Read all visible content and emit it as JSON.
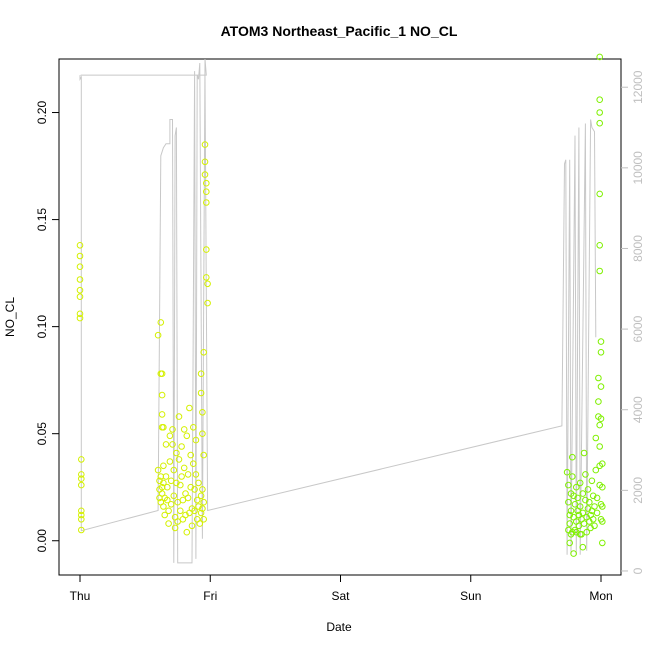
{
  "chart_data": {
    "type": "scatter",
    "title": "ATOM3 Northeast_Pacific_1 NO_CL",
    "xlabel": "Date",
    "ylabel": "NO_CL",
    "x_ticks": [
      "Thu",
      "Fri",
      "Sat",
      "Sun",
      "Mon"
    ],
    "ylim": [
      -0.016,
      0.225
    ],
    "yticks": [
      0.0,
      0.05,
      0.1,
      0.15,
      0.2
    ],
    "ytick_labels": [
      "0.00",
      "0.05",
      "0.10",
      "0.15",
      "0.20"
    ],
    "y2lim": [
      -100,
      12700
    ],
    "y2ticks": [
      0,
      2000,
      4000,
      6000,
      8000,
      10000,
      12000
    ],
    "y2tick_labels": [
      "0",
      "2000",
      "4000",
      "6000",
      "8000",
      "10000",
      "12000"
    ],
    "grid": false,
    "colors": {
      "points_early": "#d4f000",
      "points_late": "#7ff000",
      "altitude_line": "#c8c8c8",
      "right_axis": "#bfbfbf"
    },
    "scatter": [
      [
        0.0,
        0.138
      ],
      [
        0.0,
        0.133
      ],
      [
        0.0,
        0.128
      ],
      [
        0.0,
        0.122
      ],
      [
        0.0,
        0.117
      ],
      [
        0.0,
        0.114
      ],
      [
        0.0,
        0.106
      ],
      [
        0.0,
        0.104
      ],
      [
        0.01,
        0.038
      ],
      [
        0.01,
        0.031
      ],
      [
        0.01,
        0.029
      ],
      [
        0.01,
        0.026
      ],
      [
        0.01,
        0.014
      ],
      [
        0.01,
        0.012
      ],
      [
        0.01,
        0.01
      ],
      [
        0.01,
        0.005
      ],
      [
        0.6,
        0.096
      ],
      [
        0.62,
        0.102
      ],
      [
        0.62,
        0.078
      ],
      [
        0.63,
        0.078
      ],
      [
        0.63,
        0.068
      ],
      [
        0.63,
        0.059
      ],
      [
        0.63,
        0.053
      ],
      [
        0.64,
        0.053
      ],
      [
        0.6,
        0.033
      ],
      [
        0.61,
        0.028
      ],
      [
        0.61,
        0.024
      ],
      [
        0.61,
        0.02
      ],
      [
        0.62,
        0.018
      ],
      [
        0.62,
        0.03
      ],
      [
        0.63,
        0.025
      ],
      [
        0.63,
        0.022
      ],
      [
        0.64,
        0.035
      ],
      [
        0.64,
        0.027
      ],
      [
        0.64,
        0.016
      ],
      [
        0.65,
        0.02
      ],
      [
        0.65,
        0.012
      ],
      [
        0.66,
        0.045
      ],
      [
        0.66,
        0.03
      ],
      [
        0.67,
        0.025
      ],
      [
        0.67,
        0.019
      ],
      [
        0.68,
        0.014
      ],
      [
        0.68,
        0.008
      ],
      [
        0.69,
        0.049
      ],
      [
        0.69,
        0.037
      ],
      [
        0.7,
        0.028
      ],
      [
        0.7,
        0.017
      ],
      [
        0.71,
        0.052
      ],
      [
        0.71,
        0.045
      ],
      [
        0.72,
        0.033
      ],
      [
        0.72,
        0.021
      ],
      [
        0.73,
        0.011
      ],
      [
        0.73,
        0.006
      ],
      [
        0.74,
        0.041
      ],
      [
        0.74,
        0.027
      ],
      [
        0.75,
        0.018
      ],
      [
        0.75,
        0.009
      ],
      [
        0.76,
        0.058
      ],
      [
        0.76,
        0.038
      ],
      [
        0.77,
        0.026
      ],
      [
        0.77,
        0.014
      ],
      [
        0.78,
        0.044
      ],
      [
        0.78,
        0.03
      ],
      [
        0.79,
        0.019
      ],
      [
        0.79,
        0.01
      ],
      [
        0.8,
        0.052
      ],
      [
        0.8,
        0.034
      ],
      [
        0.81,
        0.022
      ],
      [
        0.81,
        0.012
      ],
      [
        0.82,
        0.004
      ],
      [
        0.82,
        0.049
      ],
      [
        0.83,
        0.031
      ],
      [
        0.83,
        0.02
      ],
      [
        0.84,
        0.013
      ],
      [
        0.84,
        0.062
      ],
      [
        0.85,
        0.04
      ],
      [
        0.85,
        0.025
      ],
      [
        0.86,
        0.015
      ],
      [
        0.86,
        0.007
      ],
      [
        0.87,
        0.053
      ],
      [
        0.87,
        0.036
      ],
      [
        0.88,
        0.024
      ],
      [
        0.88,
        0.014
      ],
      [
        0.89,
        0.047
      ],
      [
        0.89,
        0.031
      ],
      [
        0.9,
        0.019
      ],
      [
        0.9,
        0.01
      ],
      [
        0.91,
        0.027
      ],
      [
        0.91,
        0.016
      ],
      [
        0.92,
        0.008
      ],
      [
        0.93,
        0.021
      ],
      [
        0.93,
        0.013
      ],
      [
        0.94,
        0.024
      ],
      [
        0.94,
        0.015
      ],
      [
        0.95,
        0.018
      ],
      [
        0.95,
        0.01
      ],
      [
        0.93,
        0.078
      ],
      [
        0.93,
        0.069
      ],
      [
        0.94,
        0.06
      ],
      [
        0.94,
        0.05
      ],
      [
        0.95,
        0.088
      ],
      [
        0.95,
        0.04
      ],
      [
        0.96,
        0.185
      ],
      [
        0.96,
        0.177
      ],
      [
        0.96,
        0.171
      ],
      [
        0.97,
        0.167
      ],
      [
        0.97,
        0.163
      ],
      [
        0.97,
        0.158
      ],
      [
        0.97,
        0.136
      ],
      [
        0.97,
        0.123
      ],
      [
        0.98,
        0.12
      ],
      [
        0.98,
        0.111
      ],
      [
        3.74,
        0.032
      ],
      [
        3.75,
        0.026
      ],
      [
        3.75,
        0.018
      ],
      [
        3.76,
        0.012
      ],
      [
        3.76,
        0.008
      ],
      [
        3.77,
        0.022
      ],
      [
        3.77,
        0.014
      ],
      [
        3.78,
        0.039
      ],
      [
        3.78,
        0.03
      ],
      [
        3.79,
        0.021
      ],
      [
        3.79,
        0.011
      ],
      [
        3.8,
        0.005
      ],
      [
        3.8,
        0.017
      ],
      [
        3.81,
        0.025
      ],
      [
        3.81,
        0.009
      ],
      [
        3.82,
        0.014
      ],
      [
        3.82,
        0.02
      ],
      [
        3.83,
        0.007
      ],
      [
        3.83,
        0.012
      ],
      [
        3.84,
        0.027
      ],
      [
        3.84,
        0.016
      ],
      [
        3.85,
        0.01
      ],
      [
        3.85,
        0.003
      ],
      [
        3.86,
        0.022
      ],
      [
        3.86,
        0.013
      ],
      [
        3.87,
        0.008
      ],
      [
        3.87,
        0.041
      ],
      [
        3.88,
        0.031
      ],
      [
        3.88,
        0.019
      ],
      [
        3.89,
        0.011
      ],
      [
        3.89,
        0.004
      ],
      [
        3.9,
        0.024
      ],
      [
        3.9,
        0.015
      ],
      [
        3.91,
        0.009
      ],
      [
        3.91,
        0.018
      ],
      [
        3.92,
        0.012
      ],
      [
        3.92,
        0.006
      ],
      [
        3.93,
        0.028
      ],
      [
        3.93,
        0.014
      ],
      [
        3.94,
        0.01
      ],
      [
        3.94,
        0.021
      ],
      [
        3.95,
        0.007
      ],
      [
        3.95,
        0.016
      ],
      [
        3.96,
        0.048
      ],
      [
        3.96,
        0.033
      ],
      [
        3.97,
        0.02
      ],
      [
        3.97,
        0.013
      ],
      [
        3.98,
        0.076
      ],
      [
        3.98,
        0.065
      ],
      [
        3.98,
        0.058
      ],
      [
        3.99,
        0.054
      ],
      [
        3.99,
        0.044
      ],
      [
        3.99,
        0.035
      ],
      [
        3.99,
        0.026
      ],
      [
        4.0,
        0.017
      ],
      [
        4.0,
        0.01
      ],
      [
        3.99,
        0.226
      ],
      [
        3.99,
        0.206
      ],
      [
        3.99,
        0.2
      ],
      [
        3.99,
        0.195
      ],
      [
        3.99,
        0.162
      ],
      [
        3.99,
        0.138
      ],
      [
        3.99,
        0.126
      ],
      [
        4.0,
        0.093
      ],
      [
        4.0,
        0.088
      ],
      [
        4.0,
        0.072
      ],
      [
        4.0,
        0.057
      ],
      [
        4.01,
        0.036
      ],
      [
        4.01,
        0.025
      ],
      [
        4.01,
        0.016
      ],
      [
        4.01,
        0.009
      ],
      [
        4.01,
        -0.001
      ],
      [
        3.75,
        0.005
      ],
      [
        3.76,
        -0.001
      ],
      [
        3.77,
        0.003
      ],
      [
        3.78,
        0.004
      ],
      [
        3.79,
        -0.006
      ],
      [
        3.81,
        0.004
      ],
      [
        3.84,
        0.003
      ],
      [
        3.86,
        -0.003
      ]
    ],
    "altitude_line": [
      [
        0.0,
        12300
      ],
      [
        0.0,
        12200
      ],
      [
        0.01,
        12250
      ],
      [
        0.01,
        1000
      ],
      [
        0.6,
        1500
      ],
      [
        0.62,
        10300
      ],
      [
        0.64,
        10500
      ],
      [
        0.66,
        10600
      ],
      [
        0.69,
        10600
      ],
      [
        0.69,
        11200
      ],
      [
        0.71,
        11200
      ],
      [
        0.72,
        200
      ],
      [
        0.73,
        10800
      ],
      [
        0.74,
        11000
      ],
      [
        0.75,
        200
      ],
      [
        0.8,
        200
      ],
      [
        0.82,
        200
      ],
      [
        0.86,
        200
      ],
      [
        0.88,
        12400
      ],
      [
        0.89,
        300
      ],
      [
        0.9,
        12300
      ],
      [
        0.91,
        12200
      ],
      [
        0.92,
        12600
      ],
      [
        0.94,
        800
      ],
      [
        0.96,
        12700
      ],
      [
        0.97,
        12300
      ],
      [
        0.005,
        12300
      ],
      [
        0.96,
        12300
      ],
      [
        0.98,
        1500
      ],
      [
        3.7,
        3600
      ],
      [
        3.72,
        10100
      ],
      [
        3.73,
        10200
      ],
      [
        3.74,
        400
      ],
      [
        3.76,
        10200
      ],
      [
        3.77,
        400
      ],
      [
        3.8,
        10800
      ],
      [
        3.81,
        400
      ],
      [
        3.83,
        11000
      ],
      [
        3.84,
        400
      ],
      [
        3.88,
        11100
      ],
      [
        3.89,
        500
      ],
      [
        3.92,
        11200
      ],
      [
        3.93,
        11000
      ],
      [
        3.95,
        10900
      ],
      [
        3.96,
        5800
      ]
    ]
  }
}
